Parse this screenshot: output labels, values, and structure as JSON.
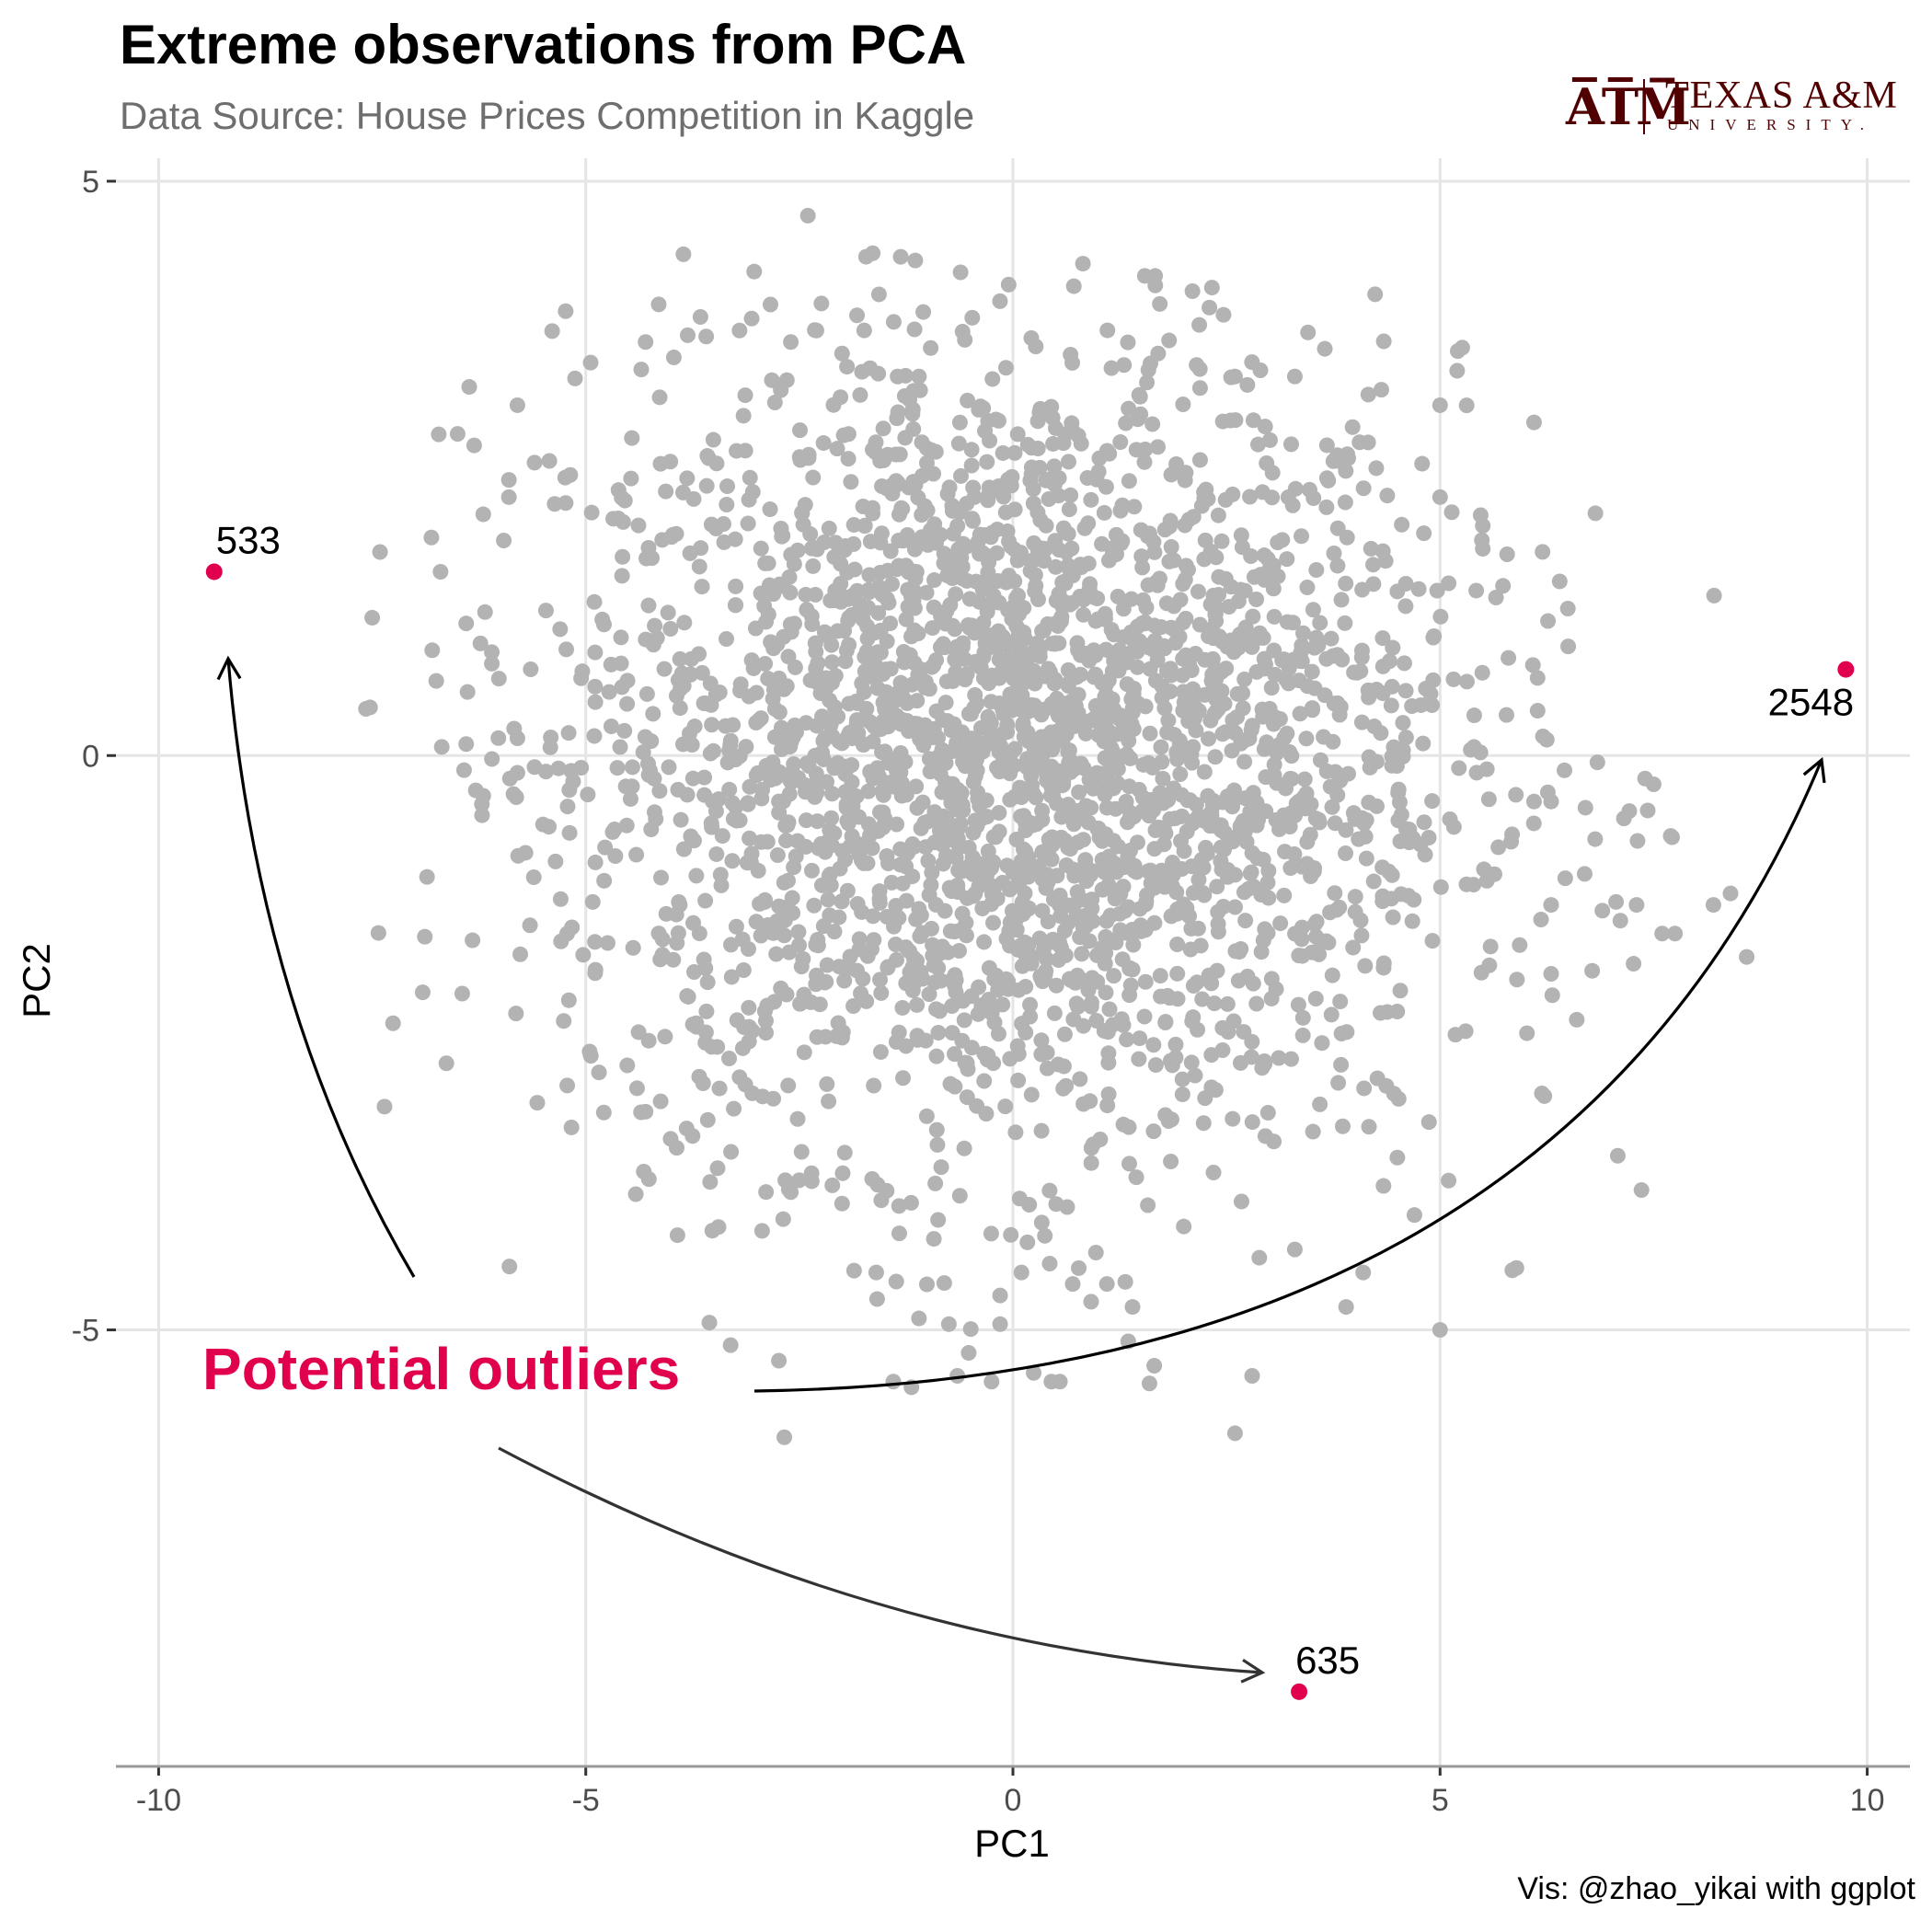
{
  "title": "Extreme observations from PCA",
  "subtitle": "Data Source: House Prices Competition in Kaggle",
  "caption": "Vis: @zhao_yikai with ggplot",
  "logo": {
    "top": "TEXAS A&M",
    "bottom": "UNIVERSITY.",
    "mark_icon": "atm-logo-icon",
    "color": "#500000"
  },
  "annotation": {
    "text": "Potential outliers",
    "color": "#e0004d"
  },
  "colors": {
    "points": "#b3b3b3",
    "outliers": "#e0004d",
    "grid": "#e5e5e5"
  },
  "chart_data": {
    "type": "scatter",
    "title": "Extreme observations from PCA",
    "subtitle": "Data Source: House Prices Competition in Kaggle",
    "xlabel": "PC1",
    "ylabel": "PC2",
    "xlim": [
      -10.5,
      10.5
    ],
    "ylim": [
      -8.8,
      5.2
    ],
    "x_ticks": [
      -10,
      -5,
      0,
      5,
      10
    ],
    "y_ticks": [
      -5,
      0,
      5
    ],
    "x_tick_labels": [
      "-10",
      "-5",
      "0",
      "5",
      "10"
    ],
    "y_tick_labels": [
      "-5",
      "0",
      "5"
    ],
    "grid": true,
    "outliers": [
      {
        "id": "533",
        "x": -9.35,
        "y": 1.6
      },
      {
        "id": "2548",
        "x": 9.75,
        "y": 0.75
      },
      {
        "id": "635",
        "x": 3.35,
        "y": -8.15
      }
    ],
    "cloud": {
      "n": 2850,
      "center": [
        0,
        0
      ],
      "sd": [
        2.6,
        1.75
      ],
      "color": "#b3b3b3"
    },
    "points": [
      [
        -2.4,
        4.7
      ],
      [
        -0.05,
        4.1
      ],
      [
        2.3,
        3.9
      ],
      [
        -4.3,
        3.6
      ],
      [
        -3.2,
        3.7
      ],
      [
        -2.6,
        3.6
      ],
      [
        -2.3,
        3.7
      ],
      [
        -1.35,
        3.3
      ],
      [
        -1.1,
        3.3
      ],
      [
        -2.0,
        3.5
      ],
      [
        1.3,
        3.4
      ],
      [
        1.7,
        3.5
      ],
      [
        2.15,
        3.4
      ],
      [
        2.6,
        3.3
      ],
      [
        3.3,
        3.3
      ],
      [
        5.2,
        3.35
      ],
      [
        5.0,
        3.05
      ],
      [
        6.1,
        2.9
      ],
      [
        -6.5,
        2.8
      ],
      [
        -5.8,
        3.05
      ],
      [
        -5.6,
        2.55
      ],
      [
        -5.9,
        2.4
      ],
      [
        -6.2,
        2.1
      ],
      [
        -5.9,
        2.25
      ],
      [
        -6.7,
        1.6
      ],
      [
        -7.5,
        1.2
      ],
      [
        -6.4,
        1.15
      ],
      [
        -6.1,
        0.9
      ],
      [
        -5.3,
        1.1
      ],
      [
        -6.75,
        0.65
      ],
      [
        -6.1,
        0.8
      ],
      [
        -5.8,
        0.15
      ],
      [
        -6.2,
        -0.35
      ],
      [
        -5.8,
        -0.15
      ],
      [
        -5.6,
        -0.1
      ],
      [
        -5.5,
        -0.6
      ],
      [
        -6.4,
        0.1
      ],
      [
        -4.2,
        -0.2
      ],
      [
        -3.9,
        -1.3
      ],
      [
        -4.1,
        -1.6
      ],
      [
        -3.8,
        -2.1
      ],
      [
        -4.3,
        -3.1
      ],
      [
        -3.6,
        -2.5
      ],
      [
        -3.2,
        -2.8
      ],
      [
        -2.6,
        -3.8
      ],
      [
        -2.0,
        -3.9
      ],
      [
        -1.6,
        -4.5
      ],
      [
        -1.1,
        -4.9
      ],
      [
        -0.75,
        -4.95
      ],
      [
        -0.15,
        -4.7
      ],
      [
        -0.15,
        -4.95
      ],
      [
        0.1,
        -4.5
      ],
      [
        0.7,
        -4.6
      ],
      [
        1.1,
        -4.6
      ],
      [
        1.4,
        -4.8
      ],
      [
        2.0,
        -4.1
      ],
      [
        2.6,
        -5.9
      ],
      [
        2.8,
        -5.4
      ],
      [
        3.3,
        -4.3
      ],
      [
        3.9,
        -4.8
      ],
      [
        4.1,
        -4.5
      ],
      [
        4.7,
        -4.0
      ],
      [
        5.0,
        -5.0
      ],
      [
        5.1,
        -3.7
      ],
      [
        4.5,
        -3.5
      ],
      [
        5.3,
        -2.4
      ],
      [
        5.9,
        -1.95
      ],
      [
        6.3,
        -1.9
      ],
      [
        6.6,
        -2.3
      ],
      [
        6.3,
        -1.3
      ],
      [
        6.9,
        -1.35
      ],
      [
        7.3,
        -1.3
      ],
      [
        7.6,
        -1.55
      ],
      [
        7.75,
        -1.55
      ],
      [
        7.7,
        -0.7
      ],
      [
        8.2,
        -1.3
      ],
      [
        8.4,
        -1.2
      ],
      [
        7.5,
        -0.25
      ],
      [
        7.4,
        -0.2
      ],
      [
        6.3,
        -0.4
      ],
      [
        6.1,
        -0.4
      ],
      [
        6.5,
        0.95
      ],
      [
        5.8,
        0.85
      ],
      [
        5.4,
        0.35
      ],
      [
        5.1,
        1.5
      ],
      [
        5.5,
        1.8
      ],
      [
        5.0,
        2.25
      ],
      [
        5.5,
        2.0
      ],
      [
        4.75,
        1.45
      ],
      [
        -1.4,
        -5.45
      ],
      [
        -0.65,
        -5.4
      ],
      [
        -0.25,
        -5.45
      ],
      [
        0.45,
        -5.45
      ],
      [
        0.55,
        -5.45
      ],
      [
        1.35,
        -5.1
      ],
      [
        -3.3,
        -3.45
      ]
    ]
  }
}
